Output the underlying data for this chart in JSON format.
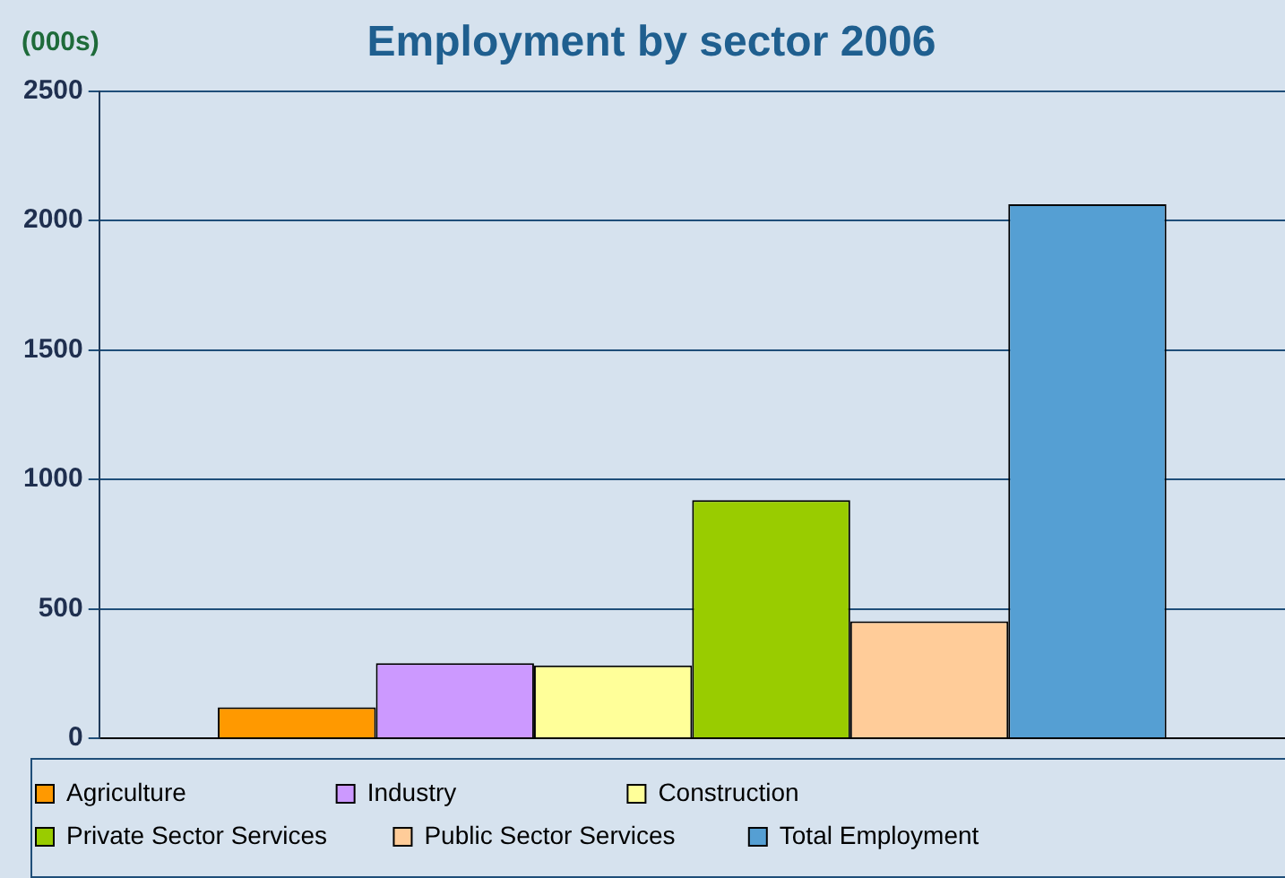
{
  "chart_data": {
    "type": "bar",
    "title": "Employment by sector 2006",
    "ylabel": "(000s)",
    "categories": [
      null
    ],
    "series": [
      {
        "name": "Agriculture",
        "color": "#ff9900",
        "values": [
          119
        ]
      },
      {
        "name": "Industry",
        "color": "#cc99ff",
        "values": [
          290
        ]
      },
      {
        "name": "Construction",
        "color": "#ffff99",
        "values": [
          281
        ]
      },
      {
        "name": "Private Sector Services",
        "color": "#99cc00",
        "values": [
          920
        ]
      },
      {
        "name": "Public Sector Services",
        "color": "#ffcc99",
        "values": [
          452
        ]
      },
      {
        "name": "Total Employment",
        "color": "#559fd3",
        "values": [
          2063
        ]
      }
    ],
    "ylim": [
      0,
      2500
    ],
    "yticks": [
      0,
      500,
      1000,
      1500,
      2000,
      2500
    ],
    "grid": "y",
    "legend": "bottom"
  }
}
